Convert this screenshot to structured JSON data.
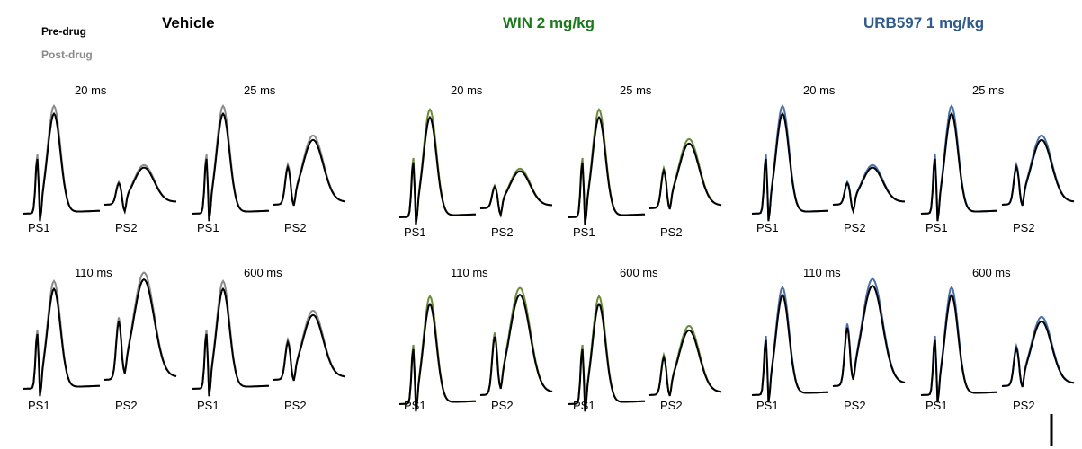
{
  "legend": {
    "pre": {
      "label": "Pre-drug",
      "color": "#000000"
    },
    "post": {
      "label": "Post-drug",
      "color": "#8a8a8a"
    }
  },
  "conditions": [
    {
      "id": "vehicle",
      "title": "Vehicle",
      "title_color": "#000000",
      "post_color": "#8a8a8a"
    },
    {
      "id": "win",
      "title": "WIN  2 mg/kg",
      "title_color": "#1a7a1a",
      "post_color": "#6b8a3a"
    },
    {
      "id": "urb",
      "title": "URB597 1 mg/kg",
      "title_color": "#2e5a8c",
      "post_color": "#4a6fa5"
    }
  ],
  "intervals": [
    "20 ms",
    "25 ms",
    "110 ms",
    "600 ms"
  ],
  "spike_labels": {
    "ps1": "PS1",
    "ps2": "PS2"
  }
}
